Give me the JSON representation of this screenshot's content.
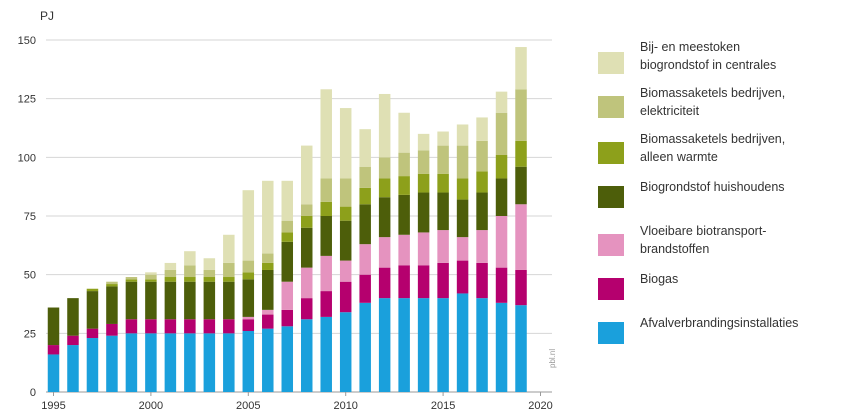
{
  "chart_data": {
    "type": "bar",
    "stacked": true,
    "unit_label": "PJ",
    "title": "",
    "xlabel": "",
    "ylabel": "PJ",
    "ylim": [
      0,
      150
    ],
    "yticks": [
      0,
      25,
      50,
      75,
      100,
      125,
      150
    ],
    "xlim": [
      1995,
      2020
    ],
    "xticks": [
      1995,
      2000,
      2005,
      2010,
      2015,
      2020
    ],
    "grid": true,
    "legend_position": "right",
    "categories": [
      1995,
      1996,
      1997,
      1998,
      1999,
      2000,
      2001,
      2002,
      2003,
      2004,
      2005,
      2006,
      2007,
      2008,
      2009,
      2010,
      2011,
      2012,
      2013,
      2014,
      2015,
      2016,
      2017,
      2018,
      2019
    ],
    "series": [
      {
        "name": "Afvalverbrandingsinstallaties",
        "color": "#1aa0dc",
        "values": [
          16,
          20,
          23,
          24,
          25,
          25,
          25,
          25,
          25,
          25,
          26,
          27,
          28,
          31,
          32,
          34,
          38,
          40,
          40,
          40,
          40,
          42,
          40,
          38,
          37
        ]
      },
      {
        "name": "Biogas",
        "color": "#b5006e",
        "values": [
          4,
          4,
          4,
          5,
          6,
          6,
          6,
          6,
          6,
          6,
          5,
          6,
          7,
          9,
          11,
          13,
          12,
          13,
          14,
          14,
          15,
          14,
          15,
          15,
          15
        ]
      },
      {
        "name": "Vloeibare biotransport-\nbrandstoffen",
        "color": "#e593bf",
        "values": [
          0,
          0,
          0,
          0,
          0,
          0,
          0,
          0,
          0,
          0,
          1,
          2,
          12,
          13,
          15,
          9,
          13,
          13,
          13,
          14,
          14,
          10,
          14,
          22,
          28
        ]
      },
      {
        "name": "Biogrondstof huishoudens",
        "color": "#4d5e0a",
        "values": [
          16,
          16,
          16,
          16,
          16,
          16,
          16,
          16,
          16,
          16,
          16,
          17,
          17,
          17,
          17,
          17,
          17,
          17,
          17,
          17,
          16,
          16,
          16,
          16,
          16
        ]
      },
      {
        "name": "Biomassaketels bedrijven,\nalleen warmte",
        "color": "#8da01b",
        "values": [
          0,
          0,
          1,
          1,
          1,
          1,
          2,
          2,
          2,
          2,
          3,
          3,
          4,
          5,
          6,
          6,
          7,
          8,
          8,
          8,
          8,
          9,
          9,
          10,
          11
        ]
      },
      {
        "name": "Biomassaketels bedrijven,\nelektriciteit",
        "color": "#bfc47c",
        "values": [
          0,
          0,
          0,
          1,
          1,
          2,
          3,
          5,
          3,
          6,
          5,
          4,
          5,
          5,
          10,
          12,
          9,
          9,
          10,
          10,
          12,
          14,
          13,
          18,
          22
        ]
      },
      {
        "name": "Bij- en meestoken\nbiogrondstof in centrales",
        "color": "#dfe0b4",
        "values": [
          0,
          0,
          0,
          0,
          0,
          1,
          3,
          6,
          5,
          12,
          30,
          31,
          17,
          25,
          38,
          30,
          16,
          27,
          17,
          7,
          6,
          9,
          10,
          9,
          18
        ]
      }
    ]
  },
  "legend_order": [
    6,
    5,
    4,
    3,
    2,
    1,
    0
  ],
  "credit": "pbl.nl"
}
